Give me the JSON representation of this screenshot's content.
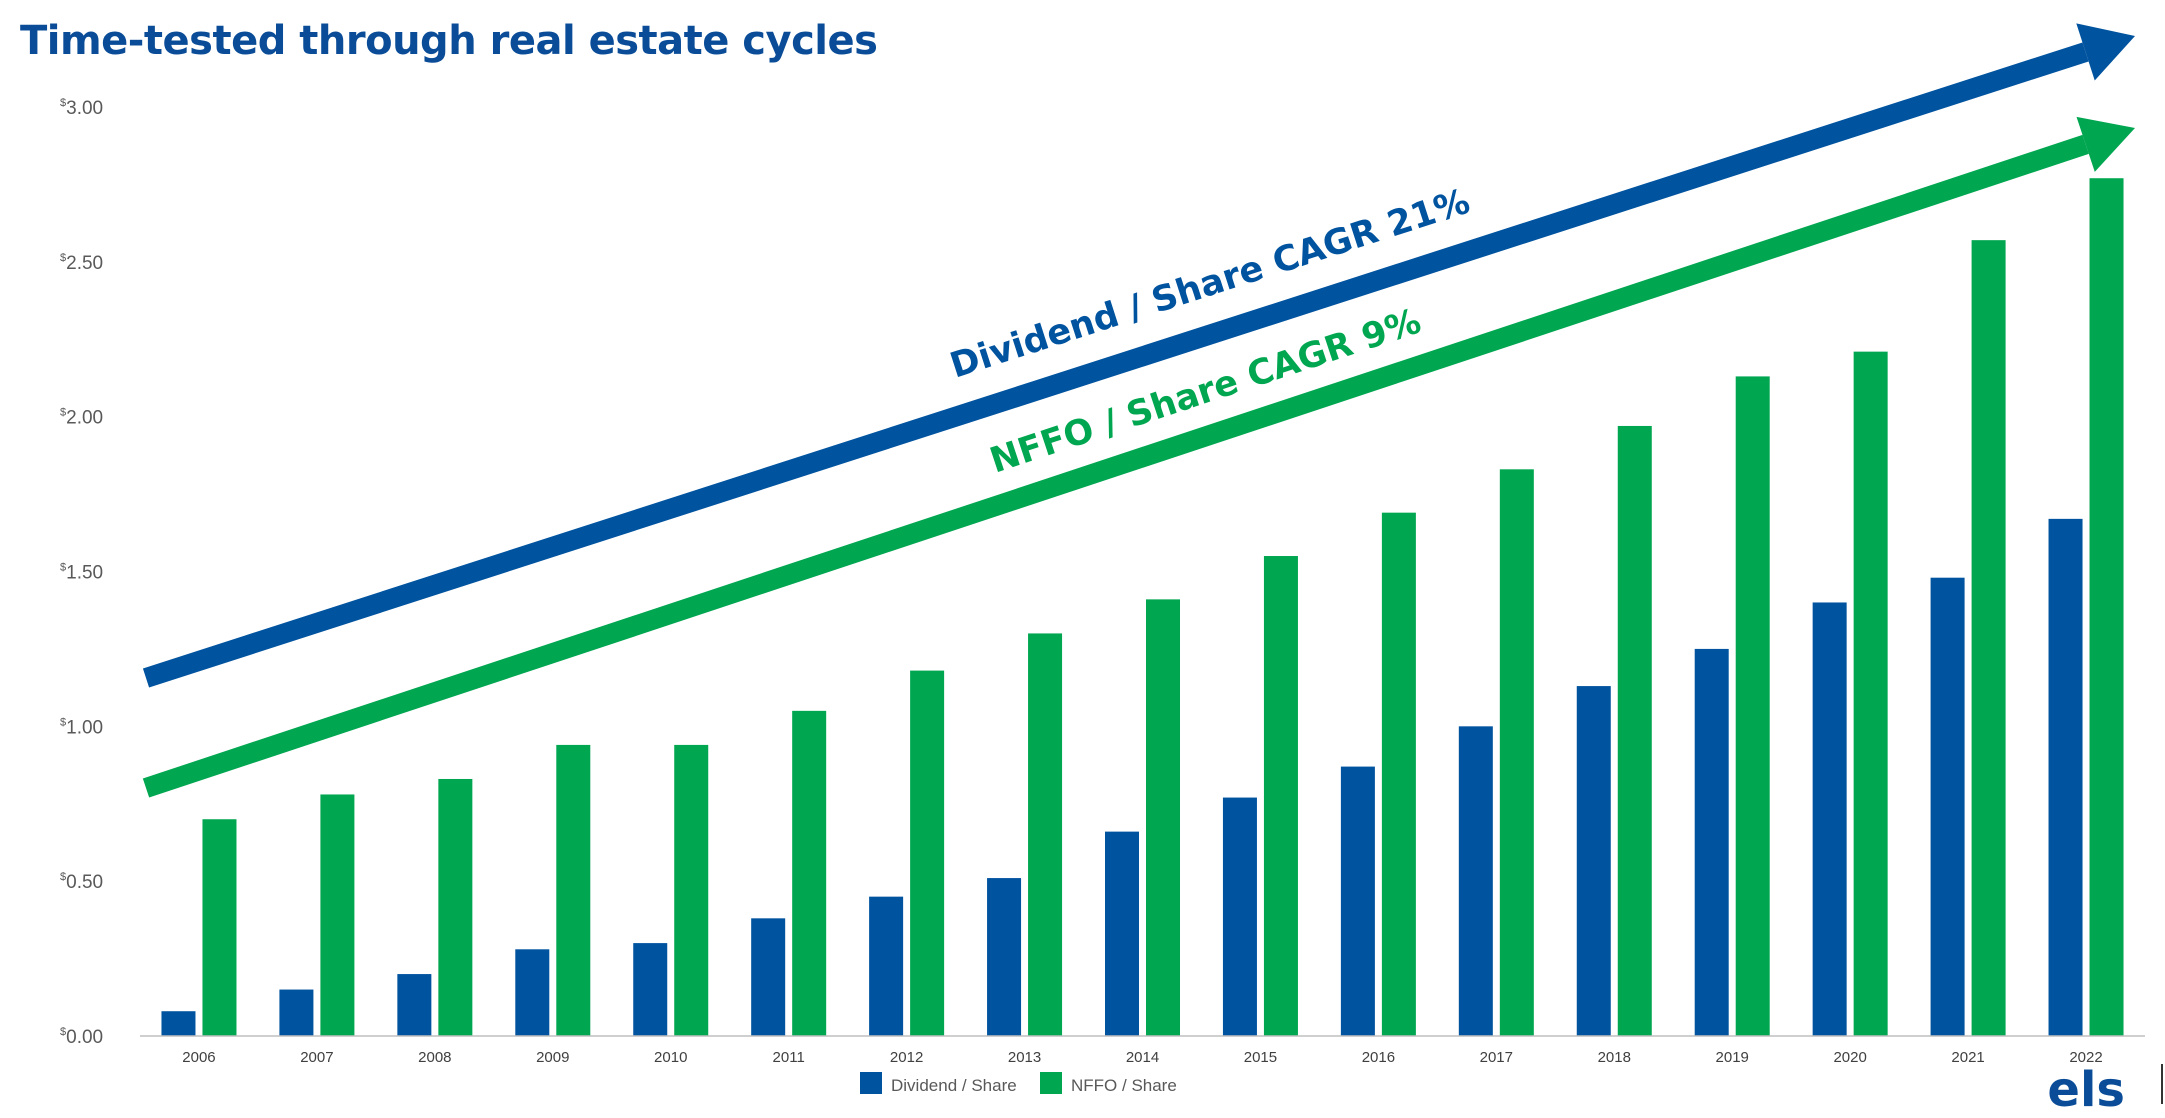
{
  "title": "Time-tested through real estate cycles",
  "colors": {
    "dividend": "#00539f",
    "nffo": "#00a650",
    "title": "#0a4c97",
    "axis": "#bfbfbf"
  },
  "arrows": {
    "dividend_label": "Dividend / Share CAGR 21%",
    "nffo_label": "NFFO / Share CAGR 9%"
  },
  "logo": "els",
  "chart_data": {
    "type": "bar",
    "categories": [
      "2006",
      "2007",
      "2008",
      "2009",
      "2010",
      "2011",
      "2012",
      "2013",
      "2014",
      "2015",
      "2016",
      "2017",
      "2018",
      "2019",
      "2020",
      "2021",
      "2022"
    ],
    "series": [
      {
        "name": "Dividend / Share",
        "values": [
          0.08,
          0.15,
          0.2,
          0.28,
          0.3,
          0.38,
          0.45,
          0.51,
          0.66,
          0.77,
          0.87,
          1.0,
          1.13,
          1.25,
          1.4,
          1.48,
          1.67
        ]
      },
      {
        "name": "NFFO / Share",
        "values": [
          0.7,
          0.78,
          0.83,
          0.94,
          0.94,
          1.05,
          1.18,
          1.3,
          1.41,
          1.55,
          1.69,
          1.83,
          1.97,
          2.13,
          2.21,
          2.57,
          2.77
        ]
      }
    ],
    "yticks": [
      "0.00",
      "0.50",
      "1.00",
      "1.50",
      "2.00",
      "2.50",
      "3.00"
    ],
    "ytick_currency": "$",
    "ylim": [
      0,
      3
    ],
    "legend": {
      "position": "bottom-center",
      "entries": [
        "Dividend / Share",
        "NFFO / Share"
      ]
    },
    "grid": false
  }
}
